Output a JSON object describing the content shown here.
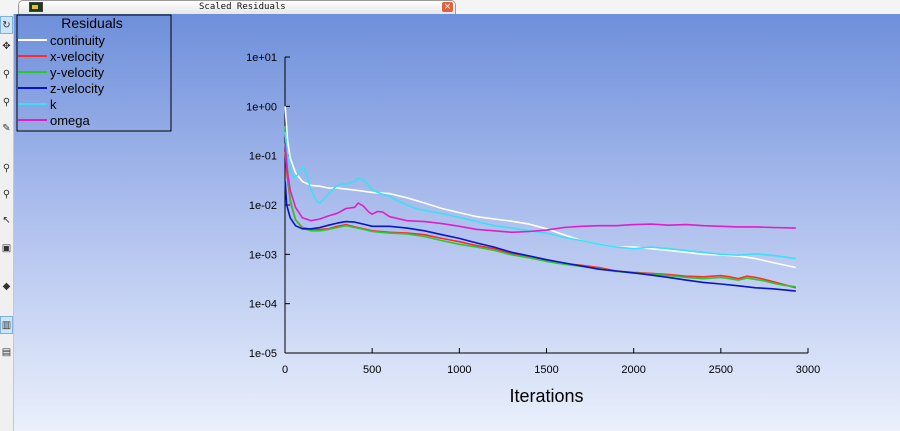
{
  "window": {
    "tab_title": "Scaled Residuals",
    "tab_icon": "fluent-app-icon",
    "close_icon": "close-icon"
  },
  "toolbar": {
    "tools": [
      {
        "icon": "rotate-icon",
        "glyph": "↻",
        "active": true
      },
      {
        "icon": "pan-icon",
        "glyph": "✥",
        "active": false
      },
      {
        "icon": "zoom-in-icon",
        "glyph": "⚲",
        "active": false
      },
      {
        "icon": "zoom-out-icon",
        "glyph": "⚲",
        "active": false
      },
      {
        "icon": "probe-icon",
        "glyph": "✎",
        "active": false
      },
      {
        "icon": "zoom-to-area-icon",
        "glyph": "⚲",
        "active": false
      },
      {
        "icon": "fit-to-window-icon",
        "glyph": "⚲",
        "active": false
      },
      {
        "icon": "select-icon",
        "glyph": "↖",
        "active": false
      },
      {
        "icon": "camera-icon",
        "glyph": "▣",
        "active": false
      },
      {
        "icon": "view-menu-icon",
        "glyph": "◆",
        "active": false
      },
      {
        "icon": "display-options-icon",
        "glyph": "▥",
        "active": true
      },
      {
        "icon": "views-icon",
        "glyph": "▤",
        "active": false
      }
    ]
  },
  "chart_data": {
    "type": "line",
    "title": "",
    "xlabel": "Iterations",
    "ylabel": "",
    "y_scale": "log",
    "xlim": [
      0,
      3000
    ],
    "ylim": [
      1e-05,
      10
    ],
    "x_ticks": [
      0,
      500,
      1000,
      1500,
      2000,
      2500,
      3000
    ],
    "x_tick_labels": [
      "0",
      "500",
      "1000",
      "1500",
      "2000",
      "2500",
      "3000"
    ],
    "y_ticks": [
      1e-05,
      0.0001,
      0.001,
      0.01,
      0.1,
      1,
      10
    ],
    "y_tick_labels": [
      "1e-05",
      "1e-04",
      "1e-03",
      "1e-02",
      "1e-01",
      "1e+00",
      "1e+01"
    ],
    "grid": false,
    "legend": {
      "title": "Residuals",
      "position": "top-left"
    },
    "series": [
      {
        "name": "continuity",
        "color": "#ffffff",
        "points": [
          [
            1,
            1
          ],
          [
            5,
            0.6
          ],
          [
            15,
            0.2
          ],
          [
            30,
            0.09
          ],
          [
            60,
            0.045
          ],
          [
            100,
            0.03
          ],
          [
            150,
            0.025
          ],
          [
            200,
            0.024
          ],
          [
            250,
            0.022
          ],
          [
            300,
            0.022
          ],
          [
            400,
            0.02
          ],
          [
            500,
            0.018
          ],
          [
            600,
            0.017
          ],
          [
            700,
            0.014
          ],
          [
            800,
            0.011
          ],
          [
            900,
            0.0085
          ],
          [
            1000,
            0.007
          ],
          [
            1100,
            0.0058
          ],
          [
            1200,
            0.0052
          ],
          [
            1300,
            0.0047
          ],
          [
            1400,
            0.0041
          ],
          [
            1500,
            0.0033
          ],
          [
            1600,
            0.0025
          ],
          [
            1700,
            0.0019
          ],
          [
            1800,
            0.0016
          ],
          [
            1900,
            0.0014
          ],
          [
            2000,
            0.0014
          ],
          [
            2100,
            0.0013
          ],
          [
            2200,
            0.0012
          ],
          [
            2300,
            0.0011
          ],
          [
            2400,
            0.001
          ],
          [
            2500,
            0.00097
          ],
          [
            2600,
            0.00092
          ],
          [
            2700,
            0.00082
          ],
          [
            2800,
            0.00068
          ],
          [
            2900,
            0.00057
          ],
          [
            2930,
            0.00054
          ]
        ]
      },
      {
        "name": "x-velocity",
        "color": "#ff2a2a",
        "points": [
          [
            1,
            0.12
          ],
          [
            10,
            0.05
          ],
          [
            30,
            0.012
          ],
          [
            60,
            0.005
          ],
          [
            100,
            0.0035
          ],
          [
            150,
            0.0032
          ],
          [
            200,
            0.0032
          ],
          [
            250,
            0.0033
          ],
          [
            300,
            0.0037
          ],
          [
            350,
            0.004
          ],
          [
            400,
            0.0036
          ],
          [
            450,
            0.0033
          ],
          [
            500,
            0.003
          ],
          [
            600,
            0.0028
          ],
          [
            700,
            0.0027
          ],
          [
            800,
            0.0025
          ],
          [
            900,
            0.0021
          ],
          [
            1000,
            0.0018
          ],
          [
            1100,
            0.0015
          ],
          [
            1200,
            0.0013
          ],
          [
            1300,
            0.00103
          ],
          [
            1400,
            0.00088
          ],
          [
            1500,
            0.00075
          ],
          [
            1600,
            0.00065
          ],
          [
            1700,
            0.0006
          ],
          [
            1800,
            0.00054
          ],
          [
            1900,
            0.00046
          ],
          [
            2000,
            0.00043
          ],
          [
            2100,
            0.00041
          ],
          [
            2200,
            0.00039
          ],
          [
            2300,
            0.00036
          ],
          [
            2400,
            0.00035
          ],
          [
            2500,
            0.00037
          ],
          [
            2550,
            0.00035
          ],
          [
            2600,
            0.00032
          ],
          [
            2650,
            0.00036
          ],
          [
            2700,
            0.00034
          ],
          [
            2750,
            0.00031
          ],
          [
            2800,
            0.00028
          ],
          [
            2850,
            0.00025
          ],
          [
            2930,
            0.00021
          ]
        ]
      },
      {
        "name": "y-velocity",
        "color": "#2cc82c",
        "points": [
          [
            1,
            0.4
          ],
          [
            10,
            0.08
          ],
          [
            30,
            0.013
          ],
          [
            60,
            0.005
          ],
          [
            100,
            0.0034
          ],
          [
            150,
            0.003
          ],
          [
            200,
            0.003
          ],
          [
            250,
            0.0032
          ],
          [
            300,
            0.0035
          ],
          [
            350,
            0.0038
          ],
          [
            400,
            0.0035
          ],
          [
            450,
            0.0032
          ],
          [
            500,
            0.0029
          ],
          [
            600,
            0.0027
          ],
          [
            700,
            0.0026
          ],
          [
            800,
            0.0023
          ],
          [
            900,
            0.0019
          ],
          [
            1000,
            0.0016
          ],
          [
            1100,
            0.0014
          ],
          [
            1200,
            0.0012
          ],
          [
            1300,
            0.00098
          ],
          [
            1400,
            0.00085
          ],
          [
            1500,
            0.00072
          ],
          [
            1600,
            0.00063
          ],
          [
            1700,
            0.00057
          ],
          [
            1800,
            0.00051
          ],
          [
            1900,
            0.00045
          ],
          [
            2000,
            0.00042
          ],
          [
            2100,
            0.0004
          ],
          [
            2200,
            0.00037
          ],
          [
            2300,
            0.00034
          ],
          [
            2400,
            0.00032
          ],
          [
            2500,
            0.00034
          ],
          [
            2550,
            0.00032
          ],
          [
            2600,
            0.0003
          ],
          [
            2650,
            0.00033
          ],
          [
            2700,
            0.00031
          ],
          [
            2750,
            0.00029
          ],
          [
            2800,
            0.00026
          ],
          [
            2850,
            0.00024
          ],
          [
            2930,
            0.00022
          ]
        ]
      },
      {
        "name": "z-velocity",
        "color": "#0a14c8",
        "points": [
          [
            1,
            0.03
          ],
          [
            10,
            0.01
          ],
          [
            30,
            0.0055
          ],
          [
            60,
            0.0038
          ],
          [
            100,
            0.0033
          ],
          [
            150,
            0.0033
          ],
          [
            200,
            0.0035
          ],
          [
            250,
            0.0039
          ],
          [
            300,
            0.0043
          ],
          [
            350,
            0.0046
          ],
          [
            400,
            0.0045
          ],
          [
            450,
            0.0041
          ],
          [
            500,
            0.0037
          ],
          [
            600,
            0.0037
          ],
          [
            700,
            0.0034
          ],
          [
            800,
            0.003
          ],
          [
            900,
            0.0025
          ],
          [
            1000,
            0.0021
          ],
          [
            1100,
            0.0017
          ],
          [
            1200,
            0.0014
          ],
          [
            1300,
            0.0011
          ],
          [
            1400,
            0.00093
          ],
          [
            1500,
            0.00078
          ],
          [
            1600,
            0.00067
          ],
          [
            1700,
            0.00058
          ],
          [
            1800,
            0.0005
          ],
          [
            1900,
            0.00046
          ],
          [
            2000,
            0.00042
          ],
          [
            2100,
            0.00038
          ],
          [
            2200,
            0.00034
          ],
          [
            2300,
            0.0003
          ],
          [
            2400,
            0.00027
          ],
          [
            2500,
            0.00025
          ],
          [
            2600,
            0.00023
          ],
          [
            2700,
            0.00021
          ],
          [
            2800,
            0.0002
          ],
          [
            2930,
            0.00018
          ]
        ]
      },
      {
        "name": "k",
        "color": "#3ce0f4",
        "points": [
          [
            1,
            0.3
          ],
          [
            10,
            0.15
          ],
          [
            30,
            0.05
          ],
          [
            50,
            0.035
          ],
          [
            70,
            0.04
          ],
          [
            100,
            0.06
          ],
          [
            120,
            0.045
          ],
          [
            150,
            0.02
          ],
          [
            180,
            0.012
          ],
          [
            200,
            0.011
          ],
          [
            230,
            0.014
          ],
          [
            270,
            0.02
          ],
          [
            300,
            0.025
          ],
          [
            330,
            0.027
          ],
          [
            350,
            0.026
          ],
          [
            380,
            0.029
          ],
          [
            400,
            0.03
          ],
          [
            420,
            0.035
          ],
          [
            450,
            0.032
          ],
          [
            480,
            0.025
          ],
          [
            500,
            0.02
          ],
          [
            550,
            0.017
          ],
          [
            600,
            0.015
          ],
          [
            650,
            0.012
          ],
          [
            700,
            0.01
          ],
          [
            750,
            0.0085
          ],
          [
            800,
            0.0078
          ],
          [
            900,
            0.0067
          ],
          [
            1000,
            0.0056
          ],
          [
            1100,
            0.0046
          ],
          [
            1200,
            0.0038
          ],
          [
            1300,
            0.0034
          ],
          [
            1400,
            0.003
          ],
          [
            1500,
            0.0027
          ],
          [
            1600,
            0.0022
          ],
          [
            1700,
            0.0019
          ],
          [
            1800,
            0.0016
          ],
          [
            1900,
            0.0014
          ],
          [
            2000,
            0.0013
          ],
          [
            2100,
            0.0014
          ],
          [
            2200,
            0.0013
          ],
          [
            2300,
            0.0012
          ],
          [
            2400,
            0.0011
          ],
          [
            2500,
            0.001
          ],
          [
            2600,
            0.00096
          ],
          [
            2700,
            0.00102
          ],
          [
            2800,
            0.00095
          ],
          [
            2930,
            0.00082
          ]
        ]
      },
      {
        "name": "omega",
        "color": "#e01ec8",
        "points": [
          [
            1,
            0.18
          ],
          [
            10,
            0.06
          ],
          [
            30,
            0.02
          ],
          [
            60,
            0.009
          ],
          [
            100,
            0.0055
          ],
          [
            150,
            0.0048
          ],
          [
            200,
            0.0052
          ],
          [
            250,
            0.006
          ],
          [
            300,
            0.0068
          ],
          [
            350,
            0.0085
          ],
          [
            400,
            0.009
          ],
          [
            420,
            0.011
          ],
          [
            450,
            0.0095
          ],
          [
            480,
            0.0072
          ],
          [
            500,
            0.0065
          ],
          [
            530,
            0.0074
          ],
          [
            560,
            0.0072
          ],
          [
            600,
            0.0058
          ],
          [
            700,
            0.0048
          ],
          [
            800,
            0.0046
          ],
          [
            900,
            0.0042
          ],
          [
            1000,
            0.0037
          ],
          [
            1100,
            0.0032
          ],
          [
            1200,
            0.003
          ],
          [
            1300,
            0.0028
          ],
          [
            1400,
            0.0029
          ],
          [
            1500,
            0.0031
          ],
          [
            1600,
            0.0035
          ],
          [
            1700,
            0.0037
          ],
          [
            1800,
            0.0038
          ],
          [
            1900,
            0.0038
          ],
          [
            2000,
            0.004
          ],
          [
            2100,
            0.0041
          ],
          [
            2200,
            0.0039
          ],
          [
            2300,
            0.004
          ],
          [
            2400,
            0.0038
          ],
          [
            2500,
            0.0037
          ],
          [
            2600,
            0.0036
          ],
          [
            2700,
            0.0036
          ],
          [
            2800,
            0.0035
          ],
          [
            2930,
            0.0034
          ]
        ]
      }
    ]
  }
}
